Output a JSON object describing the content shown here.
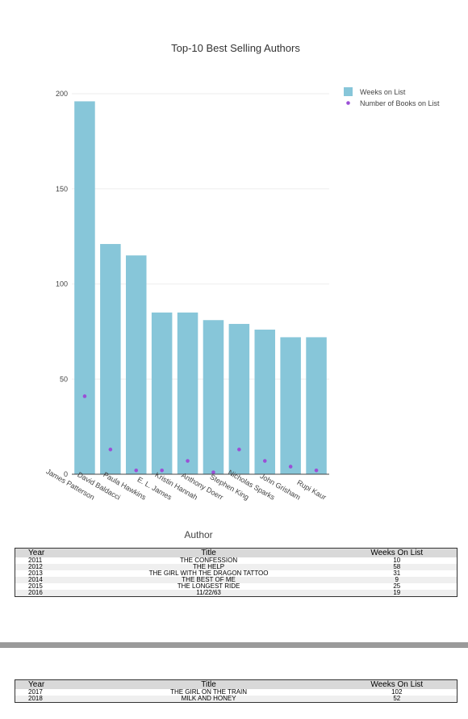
{
  "chart_data": {
    "type": "bar",
    "title": "Top-10 Best Selling Authors",
    "xlabel": "Author",
    "ylabel": "",
    "ylim": [
      0,
      200
    ],
    "yticks": [
      0,
      50,
      100,
      150,
      200
    ],
    "grid": true,
    "legend_position": "top-right",
    "categories": [
      "James Patterson",
      "David Baldacci",
      "Paula Hawkins",
      "E. L. James",
      "Kristin Hannah",
      "Anthony Doerr",
      "Stephen King",
      "Nicholas Sparks",
      "John Grisham",
      "Rupi Kaur"
    ],
    "series": [
      {
        "name": "Weeks on List",
        "type": "bar",
        "color": "#87c6d9",
        "values": [
          196,
          121,
          115,
          85,
          85,
          81,
          79,
          76,
          72,
          72
        ]
      },
      {
        "name": "Number of Books on List",
        "type": "scatter",
        "color": "#9b4fd6",
        "values": [
          41,
          13,
          2,
          2,
          7,
          1,
          13,
          7,
          4,
          2
        ]
      }
    ]
  },
  "tables": [
    {
      "headers": [
        "Year",
        "Title",
        "Weeks On List"
      ],
      "rows": [
        [
          "2011",
          "THE CONFESSION",
          "10"
        ],
        [
          "2012",
          "THE HELP",
          "58"
        ],
        [
          "2013",
          "THE GIRL WITH THE DRAGON TATTOO",
          "31"
        ],
        [
          "2014",
          "THE BEST OF ME",
          "9"
        ],
        [
          "2015",
          "THE LONGEST RIDE",
          "25"
        ],
        [
          "2016",
          "11/22/63",
          "19"
        ]
      ]
    },
    {
      "headers": [
        "Year",
        "Title",
        "Weeks On List"
      ],
      "rows": [
        [
          "2017",
          "THE GIRL ON THE TRAIN",
          "102"
        ],
        [
          "2018",
          "MILK AND HONEY",
          "52"
        ]
      ]
    }
  ]
}
